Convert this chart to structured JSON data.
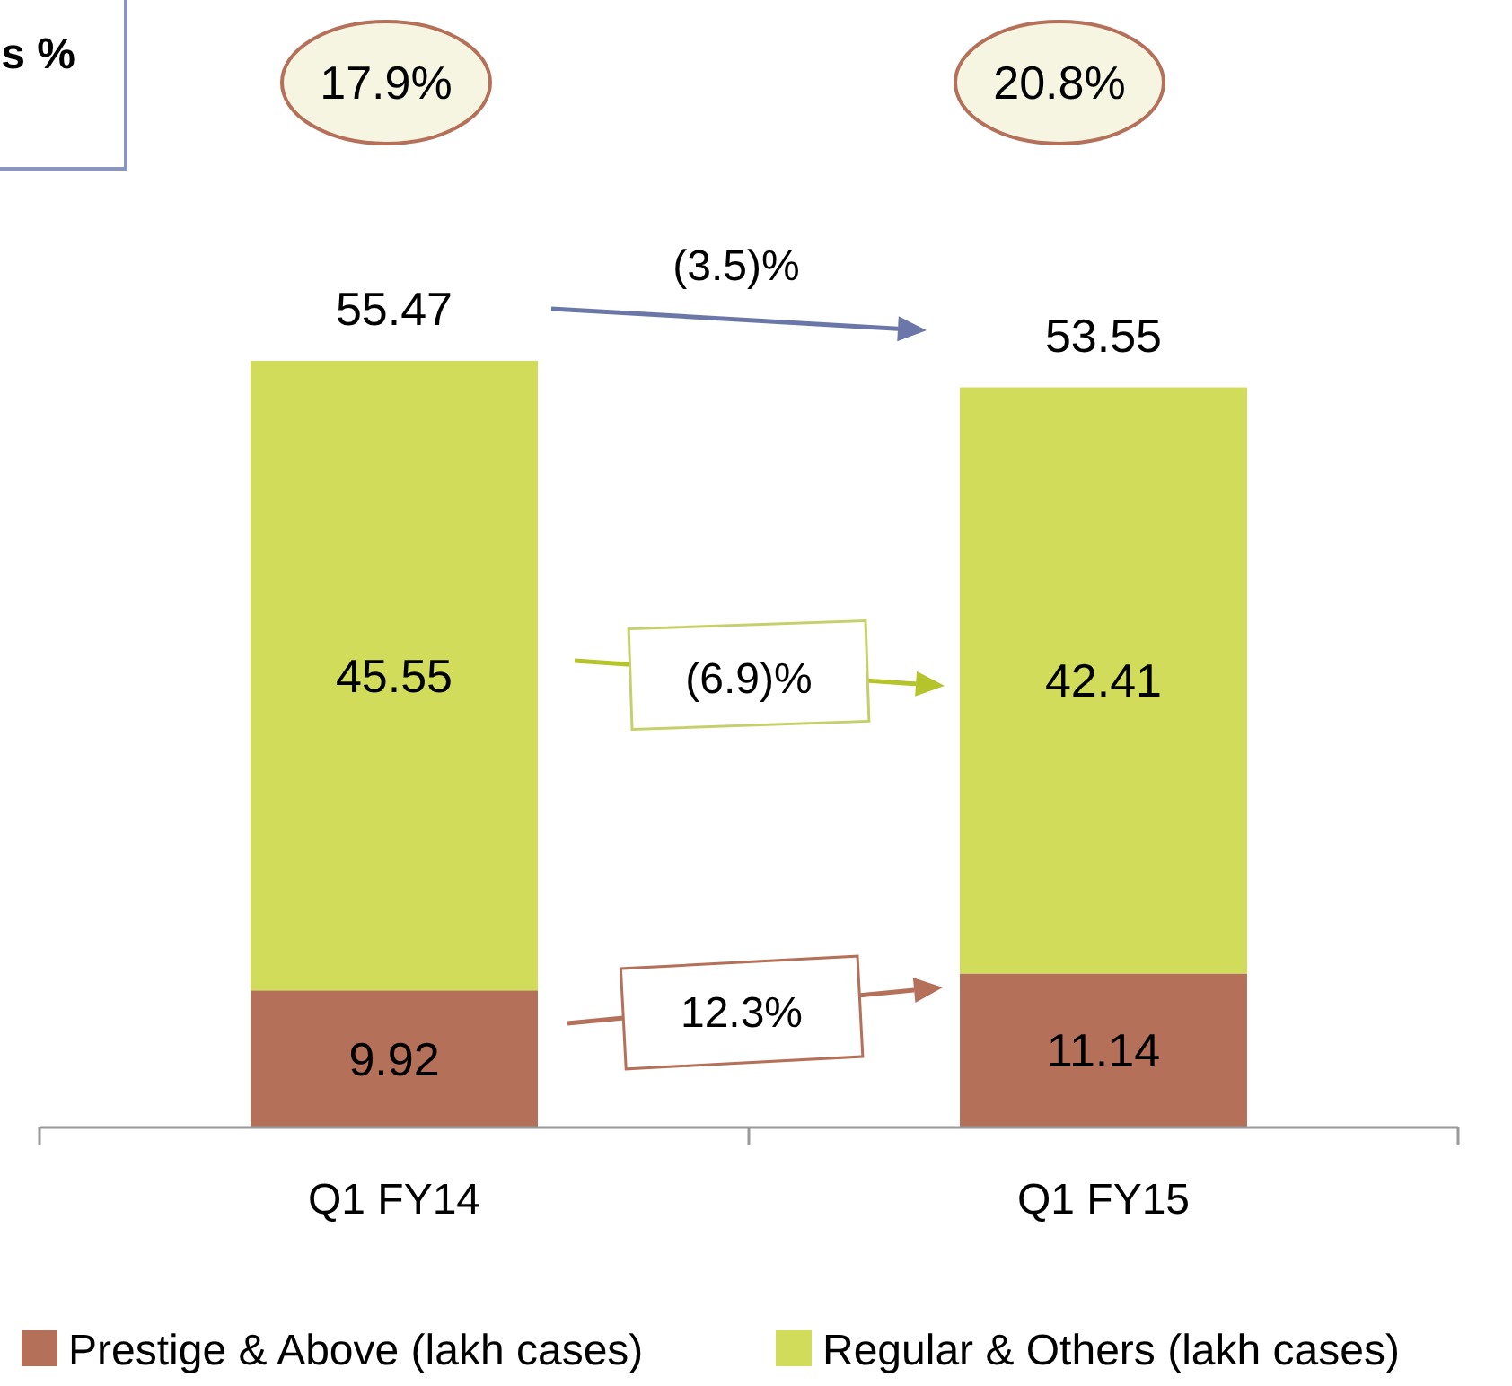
{
  "chart_data": {
    "type": "bar",
    "stacked": true,
    "categories": [
      "Q1 FY14",
      "Q1 FY15"
    ],
    "series": [
      {
        "name": "Prestige & Above (lakh cases)",
        "color": "#b5705a",
        "values": [
          9.92,
          11.14
        ]
      },
      {
        "name": "Regular & Others (lakh cases)",
        "color": "#d0dc5a",
        "values": [
          45.55,
          42.41
        ]
      }
    ],
    "data_labels": true,
    "totals": [
      "55.47",
      "53.55"
    ],
    "legend": "bottom",
    "annotations": [
      "s %",
      "17.9%",
      "20.8%",
      "(3.5)%",
      "(6.9)%",
      "12.3%"
    ]
  }
}
